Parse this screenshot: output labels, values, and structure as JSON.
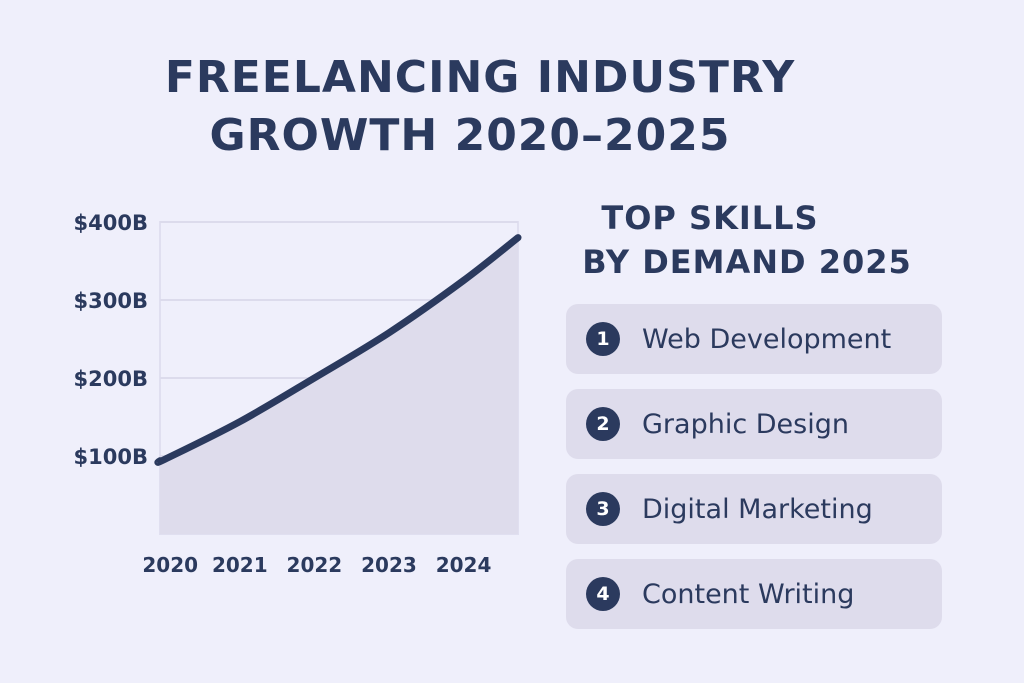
{
  "title_line1": "FREELANCING INDUSTRY",
  "title_line2": "GROWTH 2020–2025",
  "skills": {
    "title_line1": "TOP SKILLS",
    "title_line2": "BY DEMAND 2025",
    "items": [
      {
        "rank": "1",
        "label": "Web Development"
      },
      {
        "rank": "2",
        "label": "Graphic Design"
      },
      {
        "rank": "3",
        "label": "Digital Marketing"
      },
      {
        "rank": "4",
        "label": "Content Writing"
      }
    ]
  },
  "colors": {
    "text": "#2b3a5e",
    "area_fill": "#dedcec",
    "background": "#efeffb",
    "line": "#2b3a5e"
  },
  "chart_data": {
    "type": "area",
    "title": "FREELANCING INDUSTRY GROWTH 2020–2025",
    "xlabel": "",
    "ylabel": "",
    "x_ticks": [
      "2020",
      "2021",
      "2022",
      "2023",
      "2024"
    ],
    "y_ticks": [
      "$100B",
      "$200B",
      "$300B",
      "$400B"
    ],
    "y_tick_values": [
      100,
      200,
      300,
      400
    ],
    "xlim": [
      2019.93,
      2024.73
    ],
    "ylim": [
      0,
      400
    ],
    "grid": true,
    "series": [
      {
        "x": [
          2019.93,
          2020,
          2021,
          2022,
          2023,
          2024,
          2024.73
        ],
        "y": [
          94,
          96,
          144,
          200,
          258,
          325,
          380
        ]
      }
    ]
  }
}
